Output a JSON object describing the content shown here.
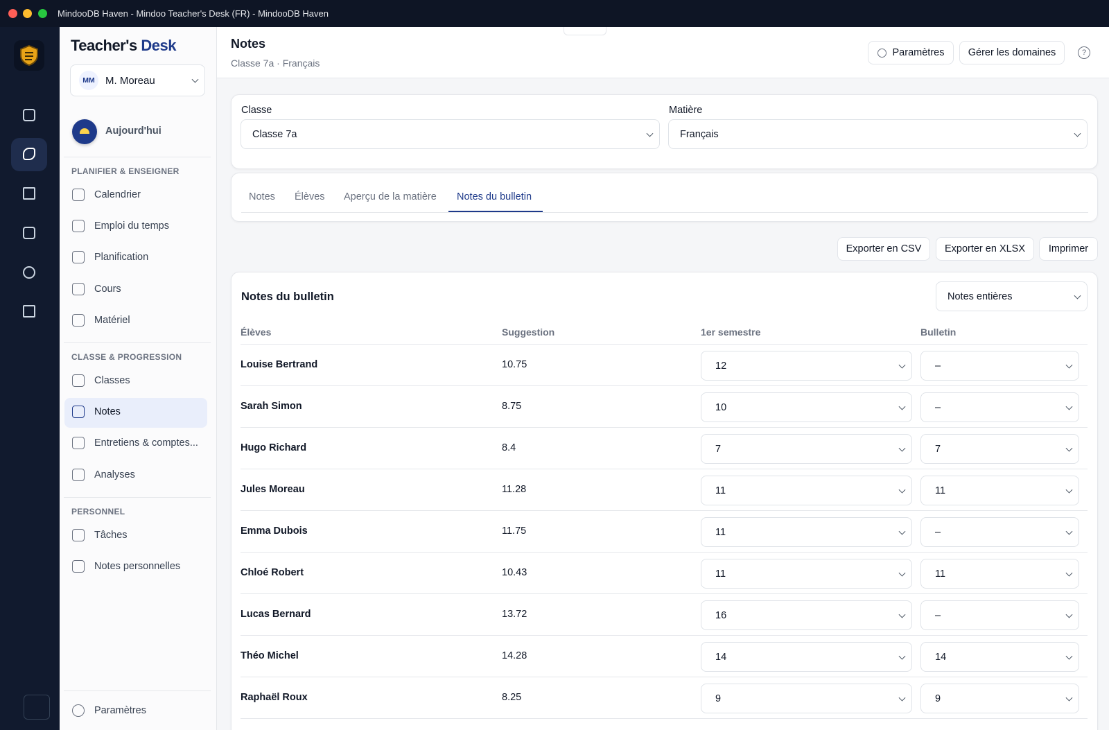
{
  "window": {
    "title": "MindooDB Haven - Mindoo Teacher's Desk (FR) - MindooDB Haven"
  },
  "sidebar": {
    "brand_a": "Teacher's",
    "brand_b": "Desk",
    "user": {
      "initials": "MM",
      "name": "M. Moreau"
    },
    "today": "Aujourd'hui",
    "sections": [
      {
        "title": "PLANIFIER & ENSEIGNER",
        "items": [
          "Calendrier",
          "Emploi du temps",
          "Planification",
          "Cours",
          "Matériel"
        ]
      },
      {
        "title": "CLASSE & PROGRESSION",
        "items": [
          "Classes",
          "Notes",
          "Entretiens & comptes...",
          "Analyses"
        ]
      },
      {
        "title": "PERSONNEL",
        "items": [
          "Tâches",
          "Notes personnelles"
        ]
      }
    ],
    "settings": "Paramètres"
  },
  "header": {
    "title": "Notes",
    "subtitle": "Classe 7a · Français",
    "buttons": [
      "Paramètres",
      "Gérer les domaines"
    ]
  },
  "filters": [
    {
      "label": "Classe",
      "value": "Classe 7a"
    },
    {
      "label": "Matière",
      "value": "Français"
    }
  ],
  "tabs": [
    "Notes",
    "Élèves",
    "Aperçu de la matière",
    "Notes du bulletin"
  ],
  "actions": [
    "Exporter en CSV",
    "Exporter en XLSX",
    "Imprimer"
  ],
  "table": {
    "title": "Notes du bulletin",
    "mode": "Notes entières",
    "columns": [
      "Élèves",
      "Suggestion",
      "1er semestre",
      "Bulletin"
    ],
    "rows": [
      [
        "Louise Bertrand",
        "10.75",
        "12",
        "–"
      ],
      [
        "Sarah Simon",
        "8.75",
        "10",
        "–"
      ],
      [
        "Hugo Richard",
        "8.4",
        "7",
        "7"
      ],
      [
        "Jules Moreau",
        "11.28",
        "11",
        "11"
      ],
      [
        "Emma Dubois",
        "11.75",
        "11",
        "–"
      ],
      [
        "Chloé Robert",
        "10.43",
        "11",
        "11"
      ],
      [
        "Lucas Bernard",
        "13.72",
        "16",
        "–"
      ],
      [
        "Théo Michel",
        "14.28",
        "14",
        "14"
      ],
      [
        "Raphaël Roux",
        "8.25",
        "9",
        "9"
      ]
    ]
  }
}
